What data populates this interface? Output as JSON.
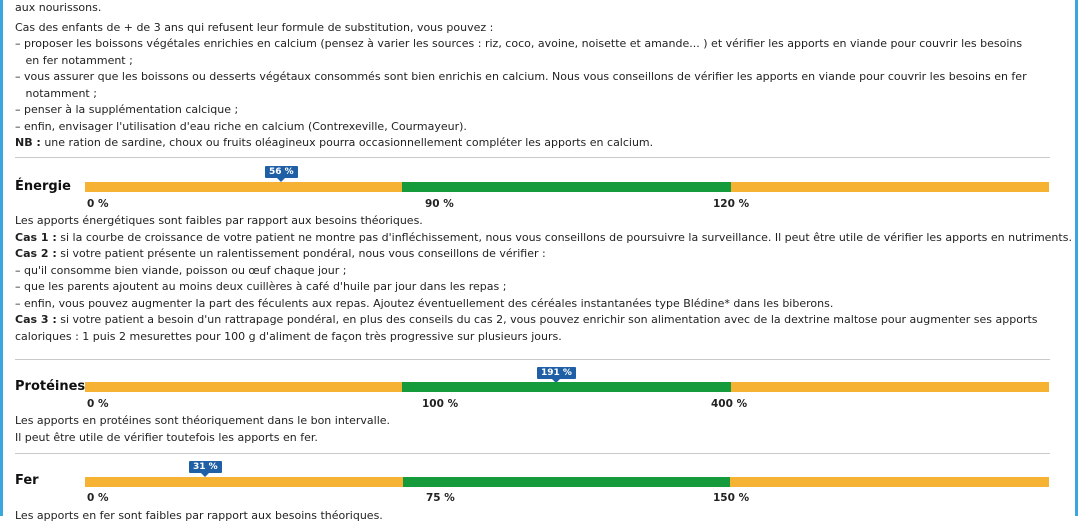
{
  "intro": {
    "line0": "aux nourissons.",
    "line1": " Cas des enfants de + de 3 ans qui refusent leur formule de substitution, vous pouvez :",
    "line2": "– proposer les boissons végétales enrichies en calcium (pensez à varier les sources : riz, coco, avoine, noisette et amande... ) et vérifier les apports en viande pour couvrir les besoins",
    "line3": "   en fer notamment ;",
    "line4": "– vous assurer que les boissons ou desserts végétaux consommés sont bien enrichis en calcium. Nous vous conseillons de vérifier les apports en viande pour couvrir les besoins en fer",
    "line5": "   notamment ;",
    "line6": "– penser à la supplémentation calcique ;",
    "line7": "– enfin, envisager l'utilisation d'eau riche en calcium (Contrexeville, Courmayeur).",
    "nb_label": "NB :",
    "nb_text": " une ration de sardine, choux ou fruits oléagineux pourra occasionnellement compléter les apports en calcium."
  },
  "energie": {
    "title": "Énergie",
    "marker": "56 %",
    "marker_fraction": 0.2,
    "segments_fractions": [
      0.33,
      0.34,
      0.33
    ],
    "ticks": [
      "0 %",
      "90 %",
      "120 %"
    ],
    "colors": {
      "low": "#f6b233",
      "ok": "#159a3c",
      "high": "#f6b233"
    },
    "text": {
      "l1": "Les apports énergétiques sont faibles par rapport aux besoins théoriques.",
      "cas1_label": "Cas 1 :",
      "cas1": " si la courbe de croissance de votre patient ne montre pas d'infléchissement, nous vous conseillons de poursuivre la surveillance. Il peut être utile de vérifier les apports en nutriments.",
      "cas2_label": "Cas 2 :",
      "cas2": " si votre patient présente un ralentissement pondéral, nous vous conseillons de vérifier :",
      "b1": "– qu'il consomme bien viande, poisson ou œuf chaque jour ;",
      "b2": "– que les parents ajoutent au moins deux cuillères à café d'huile par jour dans les repas ;",
      "b3": "– enfin, vous pouvez augmenter la part des féculents aux repas. Ajoutez éventuellement des céréales instantanées type Blédine* dans les biberons.",
      "cas3_label": "Cas 3 :",
      "cas3": " si votre patient a besoin d'un rattrapage pondéral, en plus des conseils du cas 2, vous pouvez enrichir son alimentation avec de la dextrine maltose pour augmenter ses apports",
      "cas3b": "caloriques : 1 puis 2 mesurettes pour 100 g d'aliment de façon très progressive sur plusieurs jours."
    }
  },
  "proteines": {
    "title": "Protéines",
    "marker": "191 %",
    "marker_fraction": 0.485,
    "ticks": [
      "0 %",
      "100 %",
      "400 %"
    ],
    "text": {
      "l1": "Les apports en protéines sont théoriquement dans le bon intervalle.",
      "l2": "Il peut être utile de vérifier toutefois les apports en fer."
    }
  },
  "fer": {
    "title": "Fer",
    "marker": "31 %",
    "marker_fraction": 0.123,
    "ticks": [
      "0 %",
      "75 %",
      "150 %"
    ],
    "text": {
      "l1": "Les apports en fer sont faibles par rapport aux besoins théoriques."
    }
  }
}
